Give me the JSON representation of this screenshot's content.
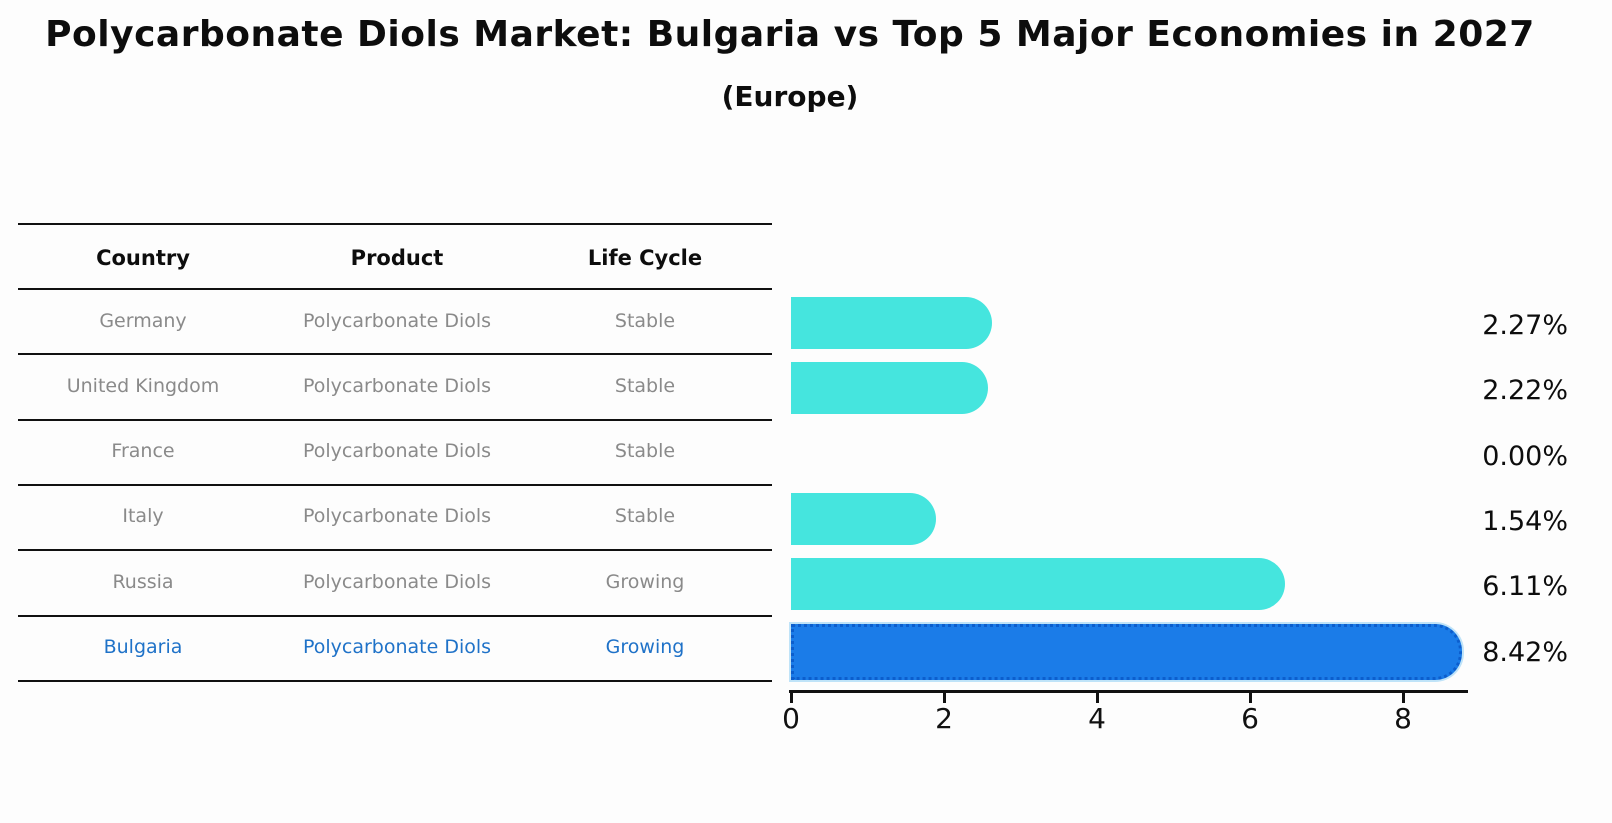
{
  "title": "Polycarbonate Diols Market: Bulgaria vs Top 5 Major Economies in 2027",
  "subtitle": "(Europe)",
  "table": {
    "headers": [
      "Country",
      "Product",
      "Life Cycle"
    ],
    "rows": [
      {
        "country": "Germany",
        "product": "Polycarbonate Diols",
        "life_cycle": "Stable",
        "highlight": false
      },
      {
        "country": "United Kingdom",
        "product": "Polycarbonate Diols",
        "life_cycle": "Stable",
        "highlight": false
      },
      {
        "country": "France",
        "product": "Polycarbonate Diols",
        "life_cycle": "Stable",
        "highlight": false
      },
      {
        "country": "Italy",
        "product": "Polycarbonate Diols",
        "life_cycle": "Stable",
        "highlight": false
      },
      {
        "country": "Russia",
        "product": "Polycarbonate Diols",
        "life_cycle": "Growing",
        "highlight": false
      },
      {
        "country": "Bulgaria",
        "product": "Polycarbonate Diols",
        "life_cycle": "Growing",
        "highlight": true
      }
    ]
  },
  "chart_data": {
    "type": "bar",
    "orientation": "horizontal",
    "title": "Polycarbonate Diols Market: Bulgaria vs Top 5 Major Economies in 2027",
    "subtitle": "(Europe)",
    "categories": [
      "Germany",
      "United Kingdom",
      "France",
      "Italy",
      "Russia",
      "Bulgaria"
    ],
    "values": [
      2.27,
      2.22,
      0.0,
      1.54,
      6.11,
      8.42
    ],
    "value_labels": [
      "2.27%",
      "2.22%",
      "0.00%",
      "1.54%",
      "6.11%",
      "8.42%"
    ],
    "x_ticks": [
      0,
      2,
      4,
      6,
      8
    ],
    "xlim": [
      0,
      8.85
    ],
    "xlabel": "",
    "ylabel": "",
    "grid": false,
    "legend": false,
    "highlight_index": 5
  },
  "colors": {
    "bar_cyan": "#45e5de",
    "bar_blue": "#1b7ce8",
    "highlight_text": "#1f72c8",
    "muted_text": "#8a8a8a",
    "line": "#111111"
  }
}
